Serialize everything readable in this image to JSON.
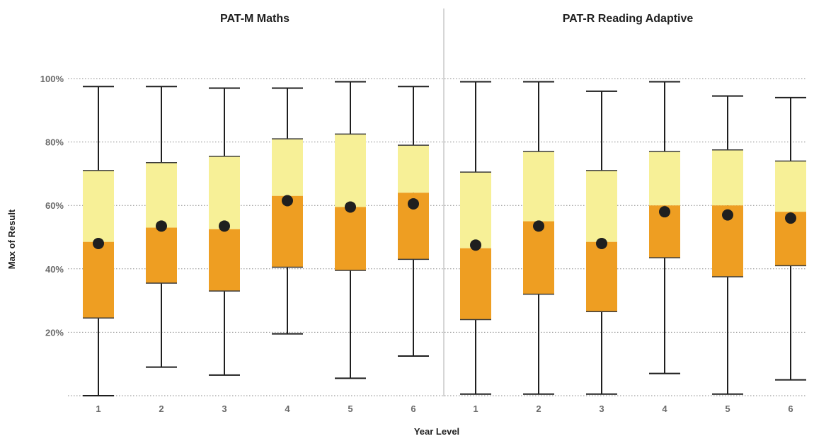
{
  "chart_data": {
    "type": "boxplot",
    "xlabel": "Year Level",
    "ylabel": "Max of Result",
    "ylim": [
      0,
      100
    ],
    "yticks": [
      20,
      40,
      60,
      80,
      100
    ],
    "ytick_labels": [
      "20%",
      "40%",
      "60%",
      "80%",
      "100%"
    ],
    "grid": "horizontal dotted",
    "colors": {
      "upper_box": "#f7f097",
      "lower_box": "#ee9e22",
      "marker": "#1f1f1f",
      "whisker": "#1f1f1f",
      "grid": "#888888",
      "divider": "#c8c8c8"
    },
    "panels": [
      {
        "title": "PAT-M Maths",
        "categories": [
          "1",
          "2",
          "3",
          "4",
          "5",
          "6"
        ],
        "min": [
          0,
          9,
          6.5,
          19.5,
          5.5,
          12.5
        ],
        "q1": [
          24.5,
          35.5,
          33,
          40.5,
          39.5,
          43
        ],
        "median": [
          48.5,
          53,
          52.5,
          63,
          59.5,
          64
        ],
        "q3": [
          71,
          73.5,
          75.5,
          81,
          82.5,
          79
        ],
        "max": [
          97.5,
          97.5,
          97,
          97,
          99,
          97.5
        ],
        "mean": [
          48,
          53.5,
          53.5,
          61.5,
          59.5,
          60.5
        ]
      },
      {
        "title": "PAT-R Reading Adaptive",
        "categories": [
          "1",
          "2",
          "3",
          "4",
          "5",
          "6"
        ],
        "min": [
          0.5,
          0.5,
          0.5,
          7,
          0.5,
          5
        ],
        "q1": [
          24,
          32,
          26.5,
          43.5,
          37.5,
          41
        ],
        "median": [
          46.5,
          55,
          48.5,
          60,
          60,
          58
        ],
        "q3": [
          70.5,
          77,
          71,
          77,
          77.5,
          74
        ],
        "max": [
          99,
          99,
          96,
          99,
          94.5,
          94
        ],
        "mean": [
          47.5,
          53.5,
          48,
          58,
          57,
          56
        ]
      }
    ]
  }
}
